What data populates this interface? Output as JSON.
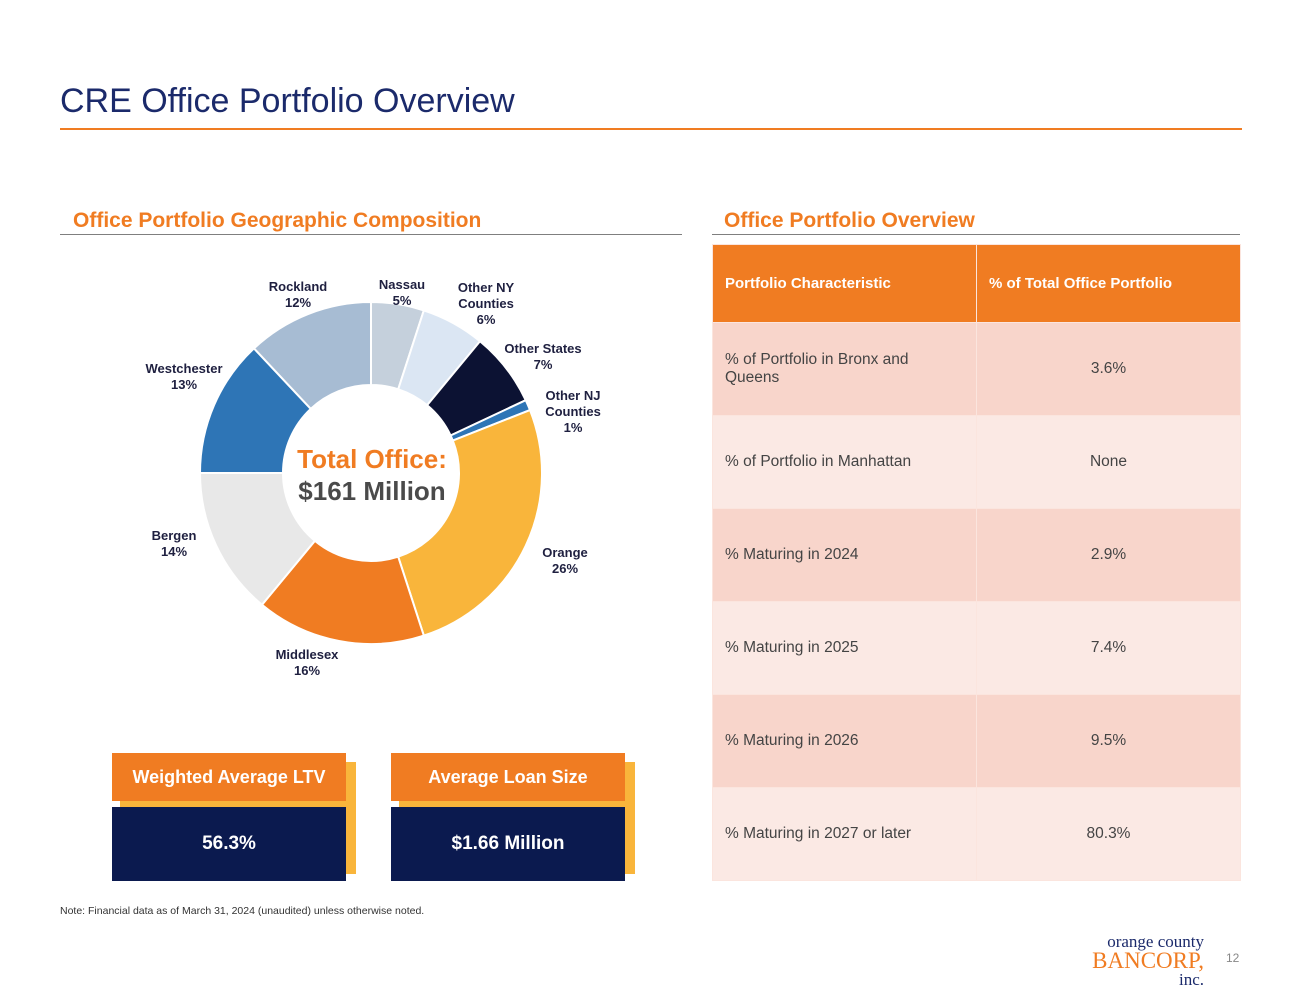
{
  "page": {
    "title": "CRE Office Portfolio Overview",
    "note": "Note: Financial data as of March 31, 2024 (unaudited) unless otherwise noted.",
    "page_number": "12"
  },
  "logo": {
    "line1": "orange county",
    "line2": "BANCORP,",
    "line3": "inc."
  },
  "composition": {
    "heading": "Office Portfolio Geographic Composition",
    "center_title": "Total Office:",
    "center_value": "$161 Million"
  },
  "chart_data": {
    "type": "pie",
    "title": "Office Portfolio Geographic Composition",
    "donut": true,
    "center_text": [
      "Total Office:",
      "$161 Million"
    ],
    "slices": [
      {
        "name": "Nassau",
        "value": 5,
        "label": "5%",
        "color": "#c5d0dc"
      },
      {
        "name": "Other NY Counties",
        "value": 6,
        "label": "6%",
        "color": "#dbe6f3"
      },
      {
        "name": "Other States",
        "value": 7,
        "label": "7%",
        "color": "#0c1233"
      },
      {
        "name": "Other NJ Counties",
        "value": 1,
        "label": "1%",
        "color": "#2e75b6"
      },
      {
        "name": "Orange",
        "value": 26,
        "label": "26%",
        "color": "#f9b53b"
      },
      {
        "name": "Middlesex",
        "value": 16,
        "label": "16%",
        "color": "#f07c22"
      },
      {
        "name": "Bergen",
        "value": 14,
        "label": "14%",
        "color": "#e8e8e8"
      },
      {
        "name": "Westchester",
        "value": 13,
        "label": "13%",
        "color": "#2e75b6"
      },
      {
        "name": "Rockland",
        "value": 12,
        "label": "12%",
        "color": "#a7bcd3"
      }
    ]
  },
  "overview": {
    "heading": "Office Portfolio Overview",
    "columns": [
      "Portfolio Characteristic",
      "% of Total Office Portfolio"
    ],
    "rows": [
      {
        "label": "% of Portfolio in Bronx and Queens",
        "value": "3.6%"
      },
      {
        "label": "% of Portfolio in Manhattan",
        "value": "None"
      },
      {
        "label": "% Maturing in 2024",
        "value": "2.9%"
      },
      {
        "label": "% Maturing in 2025",
        "value": "7.4%"
      },
      {
        "label": "% Maturing in 2026",
        "value": "9.5%"
      },
      {
        "label": "% Maturing in 2027 or later",
        "value": "80.3%"
      }
    ]
  },
  "kpis": [
    {
      "label": "Weighted Average LTV",
      "value": "56.3%"
    },
    {
      "label": "Average Loan Size",
      "value": "$1.66 Million"
    }
  ],
  "colors": {
    "accent": "#f07c22",
    "navy": "#0b1a4f",
    "gold": "#f9b53b",
    "title": "#1b2a6b"
  }
}
